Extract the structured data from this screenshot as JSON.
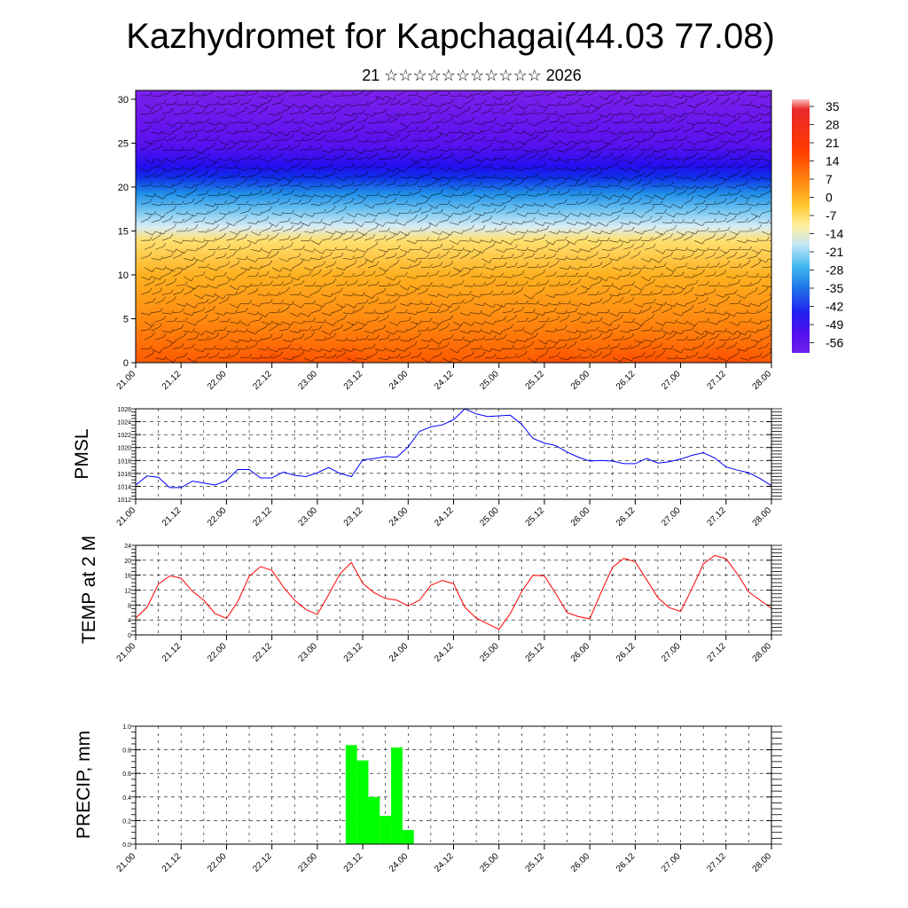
{
  "title": "Kazhydromet for Kapchagai(44.03 77.08)",
  "subtitle": "21 ☆☆☆☆☆☆☆☆☆☆☆ 2026",
  "x_tick_labels": [
    "21.00",
    "21.12",
    "22.00",
    "22.12",
    "23.00",
    "23.12",
    "24.00",
    "24.12",
    "25.00",
    "25.12",
    "26.00",
    "26.12",
    "27.00",
    "27.12",
    "28.00"
  ],
  "colors": {
    "pmsl_line": "#0000ff",
    "temp_line": "#ff0000",
    "precip_bar": "#00ff00",
    "axis": "#000000"
  },
  "chart_data": [
    {
      "type": "heatmap",
      "name": "cross-section",
      "title": "",
      "xlabel": "",
      "ylabel": "",
      "y_ticks": [
        0,
        5,
        10,
        15,
        20,
        25,
        30
      ],
      "ylim": [
        0,
        31
      ],
      "colorbar_ticks": [
        "35",
        "28",
        "21",
        "14",
        "7",
        "0",
        "-7",
        "-14",
        "-21",
        "-28",
        "-35",
        "-42",
        "-49",
        "-56"
      ],
      "colorbar_range": [
        -63,
        42
      ],
      "temperature_profile_by_level": [
        {
          "level": 0,
          "value": 25
        },
        {
          "level": 2,
          "value": 21
        },
        {
          "level": 5,
          "value": 14
        },
        {
          "level": 8,
          "value": 5
        },
        {
          "level": 11,
          "value": -2
        },
        {
          "level": 14,
          "value": -8
        },
        {
          "level": 16,
          "value": -20
        },
        {
          "level": 18,
          "value": -35
        },
        {
          "level": 20,
          "value": -45
        },
        {
          "level": 22,
          "value": -58
        },
        {
          "level": 24,
          "value": -50
        },
        {
          "level": 26,
          "value": -54
        },
        {
          "level": 31,
          "value": -58
        }
      ]
    },
    {
      "type": "line",
      "name": "PMSL",
      "ylabel": "PMSL",
      "ylim": [
        1012,
        1026
      ],
      "y_ticks": [
        1012,
        1014,
        1016,
        1018,
        1020,
        1022,
        1024,
        1026
      ],
      "x": [
        0,
        3,
        6,
        9,
        12,
        15,
        18,
        21,
        24,
        27,
        30,
        33,
        36,
        39,
        42,
        45,
        48,
        51,
        54,
        57,
        60,
        63,
        66,
        69,
        72,
        75,
        78,
        81,
        84,
        87,
        90,
        93,
        96,
        99,
        102,
        105,
        108,
        111,
        114,
        117,
        120,
        123,
        126,
        129,
        132,
        135,
        138,
        141,
        144,
        147,
        150,
        153,
        156,
        159,
        162,
        165,
        168
      ],
      "values": [
        1014.2,
        1015.6,
        1015.4,
        1013.8,
        1013.8,
        1014.8,
        1014.5,
        1014.2,
        1014.9,
        1016.6,
        1016.6,
        1015.3,
        1015.3,
        1016.2,
        1015.7,
        1015.5,
        1016.1,
        1016.9,
        1016.0,
        1015.5,
        1018.1,
        1018.3,
        1018.6,
        1018.5,
        1020.1,
        1022.5,
        1023.2,
        1023.5,
        1024.3,
        1026.0,
        1025.2,
        1024.8,
        1024.9,
        1025.0,
        1023.6,
        1021.4,
        1020.7,
        1020.3,
        1019.3,
        1018.5,
        1017.9,
        1018.0,
        1017.9,
        1017.5,
        1017.5,
        1018.3,
        1017.6,
        1017.8,
        1018.2,
        1018.8,
        1019.2,
        1018.4,
        1017.0,
        1016.5,
        1016.1,
        1015.2,
        1014.1
      ]
    },
    {
      "type": "line",
      "name": "TEMP at 2 M",
      "ylabel": "TEMP at 2 M",
      "ylim": [
        0,
        24
      ],
      "y_ticks": [
        0,
        4,
        8,
        12,
        16,
        20,
        24
      ],
      "x": [
        0,
        3,
        6,
        9,
        12,
        15,
        18,
        21,
        24,
        27,
        30,
        33,
        36,
        39,
        42,
        45,
        48,
        51,
        54,
        57,
        60,
        63,
        66,
        69,
        72,
        75,
        78,
        81,
        84,
        87,
        90,
        93,
        96,
        99,
        102,
        105,
        108,
        111,
        114,
        117,
        120,
        123,
        126,
        129,
        132,
        135,
        138,
        141,
        144,
        147,
        150,
        153,
        156,
        159,
        162,
        165,
        168
      ],
      "values": [
        4.5,
        7.4,
        13.6,
        15.8,
        15.2,
        11.7,
        9.3,
        5.7,
        4.4,
        8.9,
        15.7,
        18.3,
        17.3,
        12.9,
        9.3,
        6.8,
        5.5,
        10.8,
        16.4,
        19.4,
        13.8,
        11.3,
        9.8,
        9.3,
        7.8,
        9.3,
        13.3,
        14.6,
        13.7,
        7.4,
        4.5,
        3.0,
        1.5,
        5.7,
        11.6,
        16.0,
        15.8,
        11.1,
        6.0,
        4.9,
        4.3,
        11.4,
        18.1,
        20.5,
        19.6,
        14.8,
        9.9,
        7.3,
        6.3,
        12.4,
        19.0,
        21.3,
        20.4,
        16.3,
        11.5,
        9.3,
        7.1
      ]
    },
    {
      "type": "bar",
      "name": "PRECIP, mm",
      "ylabel": "PRECIP, mm",
      "ylim": [
        0,
        1.0
      ],
      "y_ticks": [
        "0.0",
        "0.2",
        "0.4",
        "0.6",
        "0.8",
        "1.0"
      ],
      "bar_width_hours": 3,
      "x": [
        57,
        60,
        63,
        66,
        69,
        72
      ],
      "values": [
        0.84,
        0.71,
        0.4,
        0.24,
        0.82,
        0.12
      ]
    }
  ]
}
